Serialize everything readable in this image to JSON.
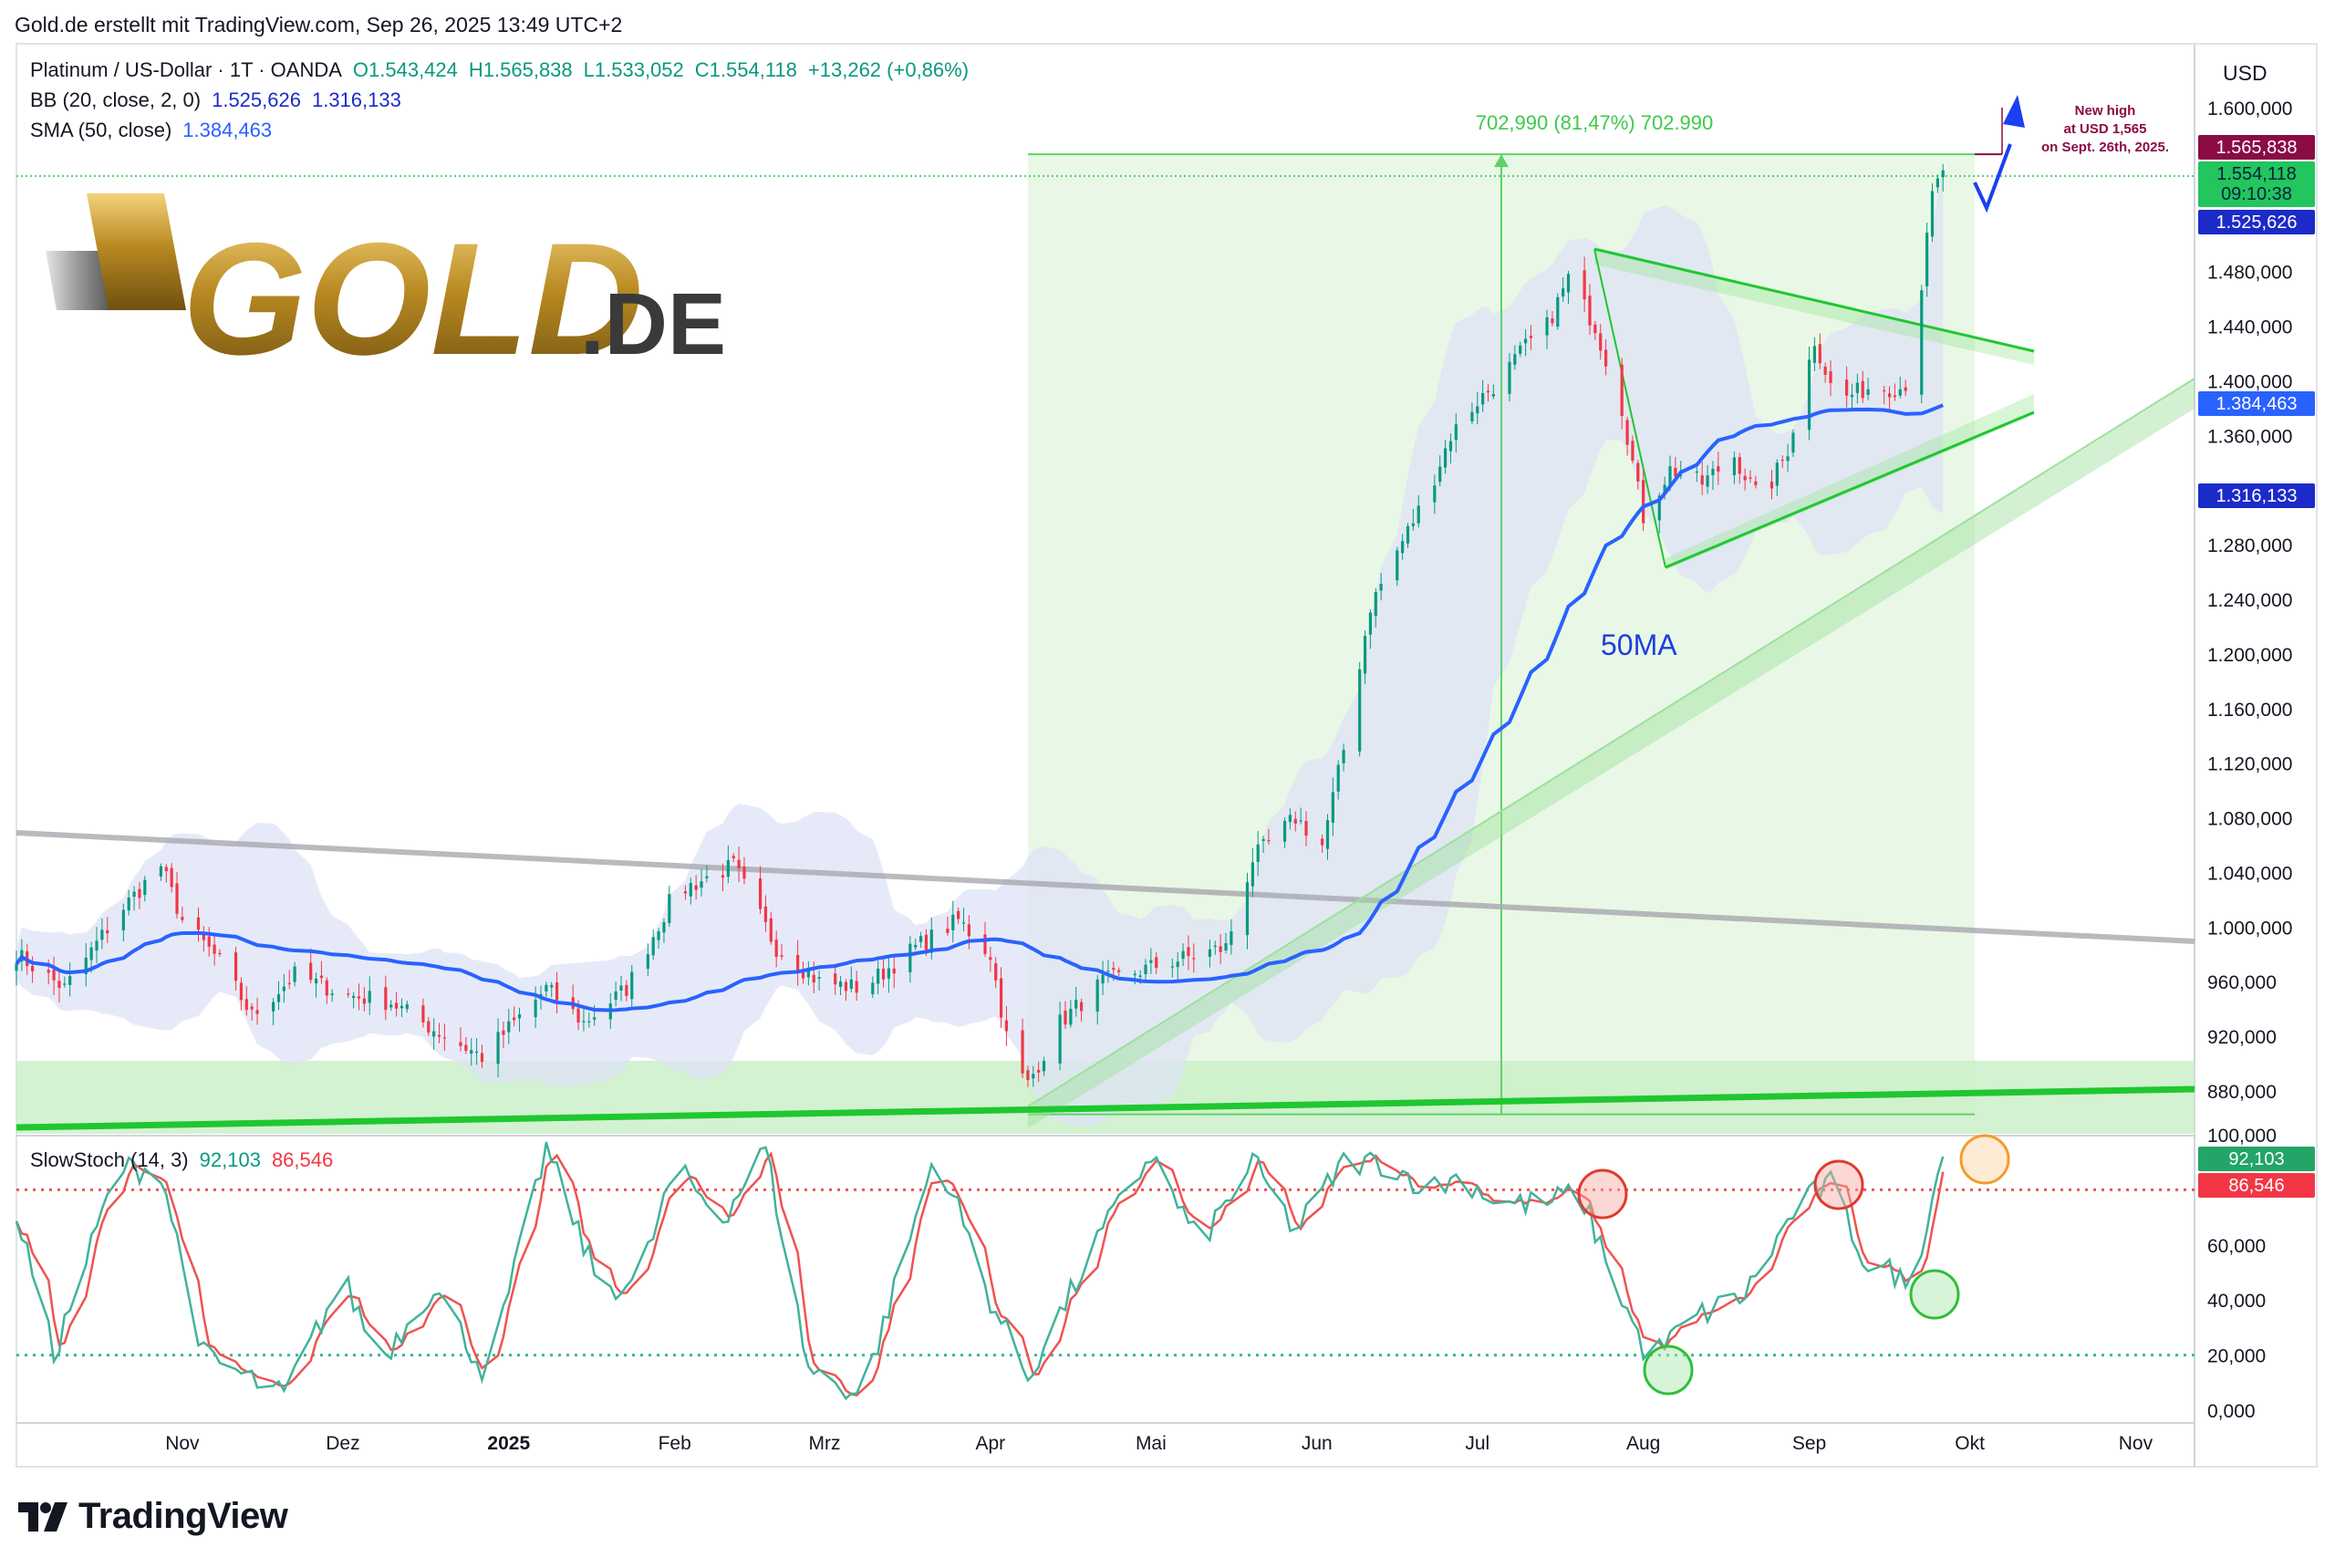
{
  "header": {
    "text": "Gold.de erstellt mit TradingView.com, Sep 26, 2025 13:49 UTC+2"
  },
  "legend": {
    "line1": {
      "title": "Platinum / US-Dollar · 1T · OANDA",
      "o": "O1.543,424",
      "h": "H1.565,838",
      "l": "L1.533,052",
      "c": "C1.554,118",
      "chg": "+13,262 (+0,86%)"
    },
    "line2": {
      "name": "BB (20, close, 2, 0)",
      "v1": "1.525,626",
      "v2": "1.316,133"
    },
    "line3": {
      "name": "SMA (50, close)",
      "v1": "1.384,463"
    },
    "stoch": {
      "name": "SlowStoch (14, 3)",
      "v1": "92,103",
      "v2": "86,546"
    }
  },
  "logo": {
    "text_gold": "GOLD",
    "text_de": ".DE"
  },
  "tv_logo_text": "TradingView",
  "annotations": {
    "measure": "702,990 (81,47%) 702.990",
    "ma_label": "50MA",
    "new_high": [
      "New high",
      "at USD 1,565",
      "on Sept. 26th, 2025."
    ]
  },
  "axis": {
    "currency": "USD",
    "price_ticks": [
      "1.600,000",
      "1.480,000",
      "1.440,000",
      "1.400,000",
      "1.360,000",
      "1.280,000",
      "1.240,000",
      "1.200,000",
      "1.160,000",
      "1.120,000",
      "1.080,000",
      "1.040,000",
      "1.000,000",
      "960,000",
      "920,000",
      "880,000"
    ],
    "stoch_ticks": [
      "100,000",
      "60,000",
      "40,000",
      "20,000",
      "0,000"
    ],
    "x_ticks": [
      "Nov",
      "Dez",
      "2025",
      "Feb",
      "Mrz",
      "Apr",
      "Mai",
      "Jun",
      "Jul",
      "Aug",
      "Sep",
      "Okt",
      "Nov"
    ],
    "price_badges": {
      "high": "1.565,838",
      "last": "1.554,118",
      "countdown": "09:10:38",
      "bb_upper": "1.525,626",
      "sma": "1.384,463",
      "bb_lower": "1.316,133"
    },
    "stoch_badges": {
      "k": "92,103",
      "d": "86,546"
    }
  },
  "colors": {
    "up": "#089981",
    "down": "#f23645",
    "sma": "#2962ff",
    "bb_fill": "#dde3f5",
    "trend_green": "#1fc730",
    "zone_green": "#c8efc6",
    "measure_fill": "#e9f8e6",
    "grey_line": "#a8a8b0",
    "stoch_k": "#41b29b",
    "stoch_d": "#ef5350",
    "annotation": "#8b0b45",
    "arrow": "#1a40f2"
  },
  "chart_data": [
    {
      "type": "candlestick",
      "title": "Platinum / US-Dollar · 1T · OANDA",
      "ylim": [
        840,
        1620
      ],
      "x_range": [
        "2024-10-01",
        "2025-11-12"
      ],
      "anchors": [
        [
          "2024-10-01",
          980
        ],
        [
          "2024-10-10",
          955
        ],
        [
          "2024-10-20",
          1010
        ],
        [
          "2024-10-28",
          1045
        ],
        [
          "2024-11-01",
          1005
        ],
        [
          "2024-11-08",
          975
        ],
        [
          "2024-11-14",
          935
        ],
        [
          "2024-11-22",
          965
        ],
        [
          "2024-12-02",
          950
        ],
        [
          "2024-12-10",
          945
        ],
        [
          "2024-12-18",
          925
        ],
        [
          "2024-12-27",
          905
        ],
        [
          "2025-01-08",
          955
        ],
        [
          "2025-01-15",
          930
        ],
        [
          "2025-01-23",
          955
        ],
        [
          "2025-02-01",
          1025
        ],
        [
          "2025-02-12",
          1045
        ],
        [
          "2025-02-20",
          985
        ],
        [
          "2025-02-28",
          960
        ],
        [
          "2025-03-08",
          955
        ],
        [
          "2025-03-18",
          985
        ],
        [
          "2025-03-26",
          1005
        ],
        [
          "2025-04-01",
          980
        ],
        [
          "2025-04-05",
          900
        ],
        [
          "2025-04-08",
          885
        ],
        [
          "2025-04-14",
          930
        ],
        [
          "2025-04-22",
          960
        ],
        [
          "2025-05-05",
          975
        ],
        [
          "2025-05-15",
          985
        ],
        [
          "2025-05-20",
          1050
        ],
        [
          "2025-05-28",
          1080
        ],
        [
          "2025-06-02",
          1060
        ],
        [
          "2025-06-06",
          1130
        ],
        [
          "2025-06-11",
          1235
        ],
        [
          "2025-06-16",
          1275
        ],
        [
          "2025-06-22",
          1320
        ],
        [
          "2025-06-26",
          1360
        ],
        [
          "2025-07-01",
          1385
        ],
        [
          "2025-07-05",
          1400
        ],
        [
          "2025-07-10",
          1425
        ],
        [
          "2025-07-14",
          1440
        ],
        [
          "2025-07-18",
          1475
        ],
        [
          "2025-07-23",
          1440
        ],
        [
          "2025-07-28",
          1380
        ],
        [
          "2025-08-01",
          1300
        ],
        [
          "2025-08-06",
          1335
        ],
        [
          "2025-08-12",
          1325
        ],
        [
          "2025-08-18",
          1345
        ],
        [
          "2025-08-23",
          1310
        ],
        [
          "2025-08-28",
          1350
        ],
        [
          "2025-09-02",
          1430
        ],
        [
          "2025-09-06",
          1385
        ],
        [
          "2025-09-12",
          1395
        ],
        [
          "2025-09-18",
          1395
        ],
        [
          "2025-09-21",
          1405
        ],
        [
          "2025-09-22",
          1470
        ],
        [
          "2025-09-24",
          1535
        ],
        [
          "2025-09-26",
          1554
        ]
      ],
      "series": [
        {
          "name": "SMA (50, close)",
          "last": 1384.463
        },
        {
          "name": "BB (20, close, 2, 0)",
          "upper_last": 1525.626,
          "lower_last": 1316.133
        }
      ],
      "last_close": 1554.118,
      "high": 1565.838,
      "measure_range": {
        "from": 862.848,
        "to": 1565.838,
        "change": 702.99,
        "pct": 81.47
      }
    },
    {
      "type": "line",
      "title": "SlowStoch (14, 3)",
      "ylim": [
        0,
        100
      ],
      "levels": [
        80,
        20
      ],
      "anchors": [
        [
          "2024-10-01",
          72
        ],
        [
          "2024-10-08",
          20
        ],
        [
          "2024-10-20",
          88
        ],
        [
          "2024-10-28",
          87
        ],
        [
          "2024-11-05",
          20
        ],
        [
          "2024-11-20",
          5
        ],
        [
          "2024-12-01",
          48
        ],
        [
          "2024-12-08",
          18
        ],
        [
          "2024-12-18",
          45
        ],
        [
          "2024-12-28",
          12
        ],
        [
          "2025-01-08",
          95
        ],
        [
          "2025-01-18",
          45
        ],
        [
          "2025-01-25",
          45
        ],
        [
          "2025-02-01",
          88
        ],
        [
          "2025-02-10",
          70
        ],
        [
          "2025-02-18",
          95
        ],
        [
          "2025-02-26",
          15
        ],
        [
          "2025-03-08",
          5
        ],
        [
          "2025-03-22",
          95
        ],
        [
          "2025-04-01",
          40
        ],
        [
          "2025-04-08",
          12
        ],
        [
          "2025-04-22",
          65
        ],
        [
          "2025-05-01",
          93
        ],
        [
          "2025-05-10",
          60
        ],
        [
          "2025-05-20",
          90
        ],
        [
          "2025-05-28",
          65
        ],
        [
          "2025-06-06",
          90
        ],
        [
          "2025-06-14",
          90
        ],
        [
          "2025-06-22",
          80
        ],
        [
          "2025-06-28",
          85
        ],
        [
          "2025-07-05",
          75
        ],
        [
          "2025-07-14",
          75
        ],
        [
          "2025-07-20",
          80
        ],
        [
          "2025-07-26",
          50
        ],
        [
          "2025-08-02",
          18
        ],
        [
          "2025-08-10",
          33
        ],
        [
          "2025-08-20",
          42
        ],
        [
          "2025-08-30",
          75
        ],
        [
          "2025-09-05",
          82
        ],
        [
          "2025-09-12",
          52
        ],
        [
          "2025-09-17",
          50
        ],
        [
          "2025-09-20",
          42
        ],
        [
          "2025-09-23",
          70
        ],
        [
          "2025-09-26",
          92
        ]
      ],
      "last_k": 92.103,
      "last_d": 86.546
    }
  ]
}
